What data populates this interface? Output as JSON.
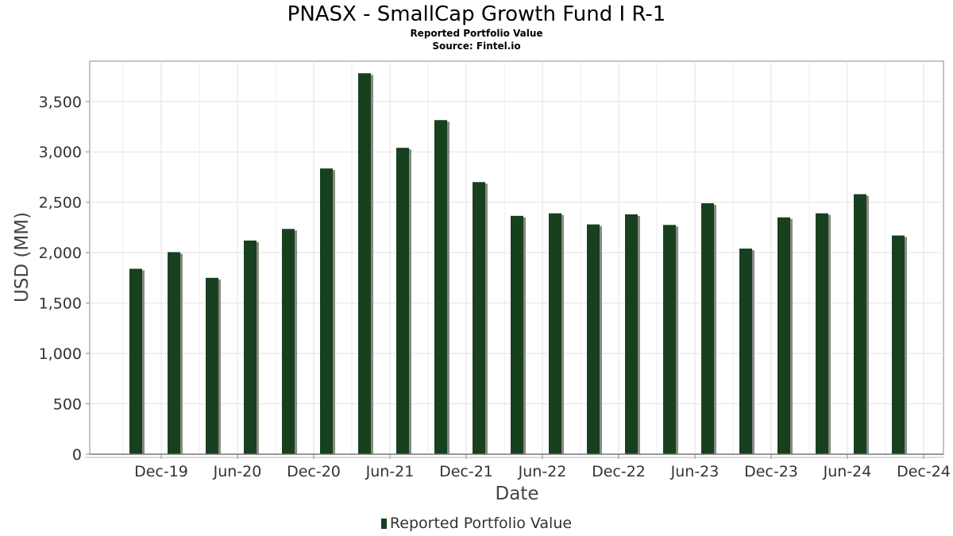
{
  "chart_data": {
    "type": "bar",
    "title": "PNASX - SmallCap Growth Fund I R-1",
    "subtitle": "Reported Portfolio Value",
    "source": "Source: Fintel.io",
    "xlabel": "Date",
    "ylabel": "USD (MM)",
    "legend": [
      "Reported Portfolio Value"
    ],
    "legend_position": "bottom",
    "grid": true,
    "ylim": [
      0,
      3900
    ],
    "yticks": [
      0,
      500,
      1000,
      1500,
      2000,
      2500,
      3000,
      3500
    ],
    "ytick_labels": [
      "0",
      "500",
      "1,000",
      "1,500",
      "2,000",
      "2,500",
      "3,000",
      "3,500"
    ],
    "x_tick_labels": [
      "Dec-19",
      "Jun-20",
      "Dec-20",
      "Jun-21",
      "Dec-21",
      "Jun-22",
      "Dec-22",
      "Jun-23",
      "Dec-23",
      "Jun-24",
      "Dec-24"
    ],
    "bar_color": "#17401f",
    "series": [
      {
        "name": "Reported Portfolio Value",
        "values": [
          1840,
          2005,
          1750,
          2120,
          2235,
          2835,
          3780,
          3040,
          3315,
          2700,
          2365,
          2390,
          2280,
          2380,
          2275,
          2490,
          2040,
          2350,
          2390,
          2580,
          2170
        ]
      }
    ]
  }
}
